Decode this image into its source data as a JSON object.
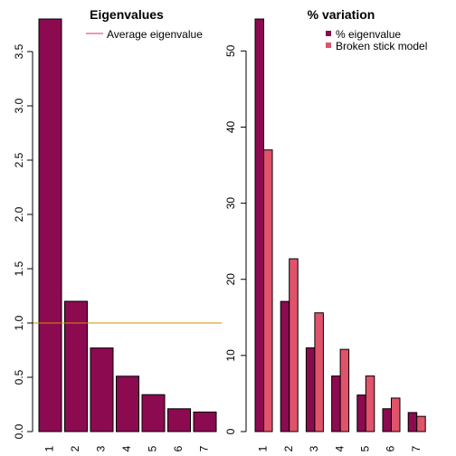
{
  "colors": {
    "eigen_bar": "#8b0a50",
    "broken_stick": "#e0536a",
    "average_line": "#d98e00",
    "legend_average_line": "#d63a57"
  },
  "chart_data": [
    {
      "type": "bar",
      "title": "Eigenvalues",
      "categories": [
        "1",
        "2",
        "3",
        "4",
        "5",
        "6",
        "7"
      ],
      "values": [
        3.8,
        1.2,
        0.77,
        0.51,
        0.34,
        0.21,
        0.18
      ],
      "ylim": [
        0,
        3.8
      ],
      "yticks": [
        "0.0",
        "0.5",
        "1.0",
        "1.5",
        "2.0",
        "2.5",
        "3.0",
        "3.5"
      ],
      "reference_line": {
        "name": "Average eigenvalue",
        "value": 1.0
      },
      "legend": {
        "placement": "top-right",
        "entries": [
          "Average eigenvalue"
        ]
      },
      "grid": false
    },
    {
      "type": "bar",
      "title": "% variation",
      "categories": [
        "1",
        "2",
        "3",
        "4",
        "5",
        "6",
        "7"
      ],
      "series": [
        {
          "name": "% eigenvalue",
          "values": [
            54.2,
            17.1,
            11.0,
            7.3,
            4.8,
            3.0,
            2.5
          ]
        },
        {
          "name": "Broken stick model",
          "values": [
            37.0,
            22.7,
            15.6,
            10.8,
            7.3,
            4.4,
            2.0
          ]
        }
      ],
      "ylim": [
        0,
        54.2
      ],
      "yticks": [
        "0",
        "10",
        "20",
        "30",
        "40",
        "50"
      ],
      "legend": {
        "placement": "top-right",
        "entries": [
          "% eigenvalue",
          "Broken stick model"
        ]
      },
      "grid": false
    }
  ]
}
